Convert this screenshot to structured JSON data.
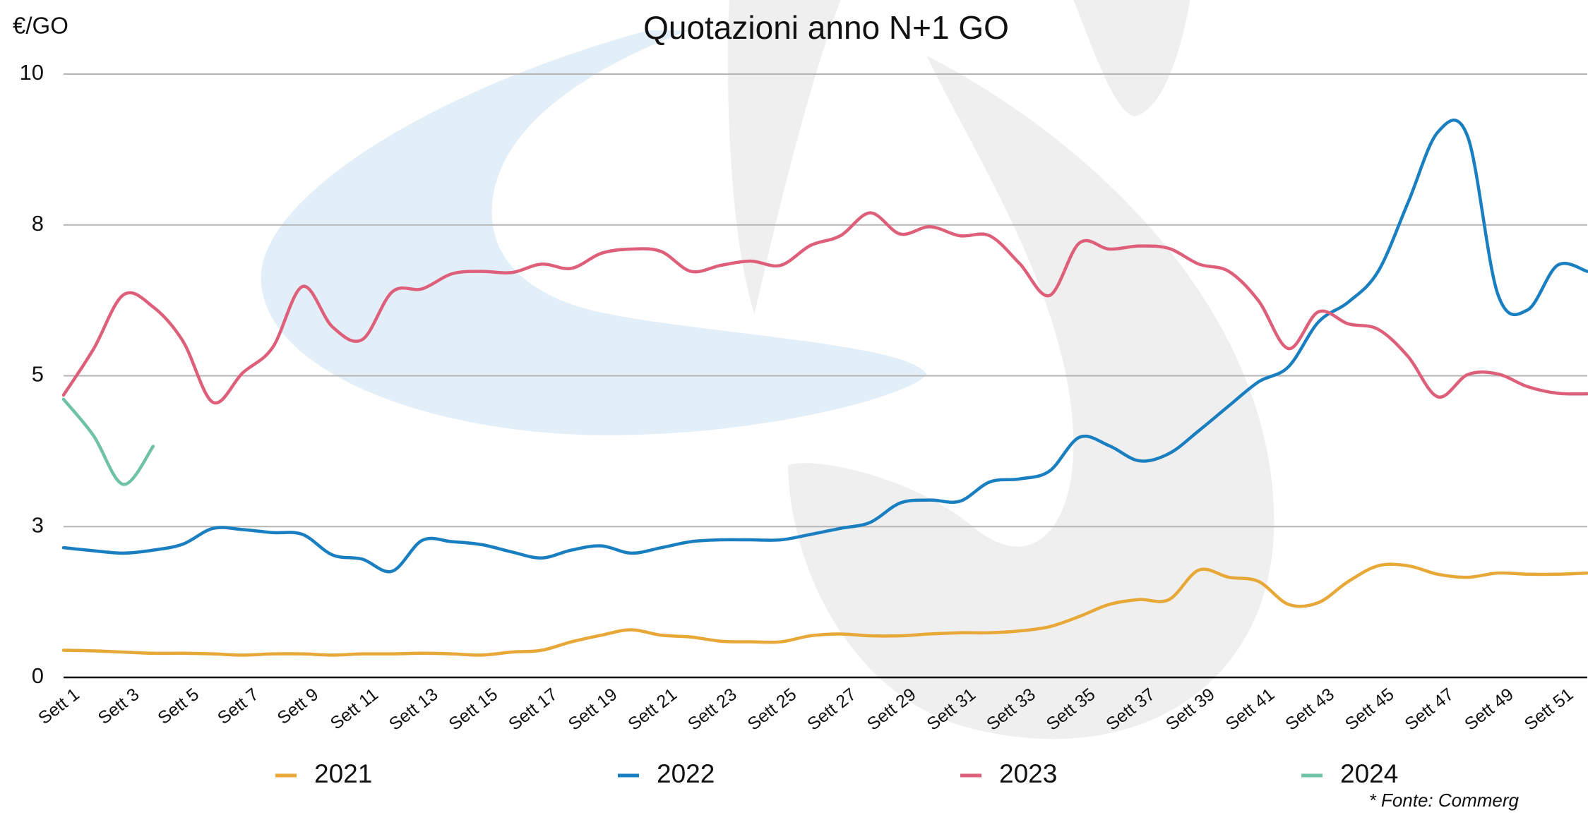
{
  "chart_data": {
    "type": "line",
    "title": "Quotazioni anno N+1 GO",
    "y_label": "€/GO",
    "categories": [
      "Sett 1",
      null,
      "Sett 3",
      null,
      "Sett 5",
      null,
      "Sett 7",
      null,
      "Sett 9",
      null,
      "Sett 11",
      null,
      "Sett 13",
      null,
      "Sett 15",
      null,
      "Sett 17",
      null,
      "Sett 19",
      null,
      "Sett 21",
      null,
      "Sett 23",
      null,
      "Sett 25",
      null,
      "Sett 27",
      null,
      "Sett 29",
      null,
      "Sett 31",
      null,
      "Sett 33",
      null,
      "Sett 35",
      null,
      "Sett 37",
      null,
      "Sett 39",
      null,
      "Sett 41",
      null,
      "Sett 43",
      null,
      "Sett 45",
      null,
      "Sett 47",
      null,
      "Sett 49",
      null,
      "Sett 51",
      null
    ],
    "series": [
      {
        "name": "2021",
        "color": "#e8a838",
        "values": [
          0.45,
          0.44,
          0.42,
          0.4,
          0.4,
          0.39,
          0.37,
          0.39,
          0.39,
          0.37,
          0.39,
          0.39,
          0.4,
          0.39,
          0.37,
          0.42,
          0.45,
          0.59,
          0.7,
          0.79,
          0.7,
          0.67,
          0.6,
          0.59,
          0.59,
          0.69,
          0.72,
          0.69,
          0.69,
          0.72,
          0.74,
          0.74,
          0.77,
          0.84,
          1.01,
          1.21,
          1.29,
          1.29,
          1.78,
          1.66,
          1.59,
          1.21,
          1.24,
          1.59,
          1.85,
          1.85,
          1.71,
          1.66,
          1.73,
          1.71,
          1.71,
          1.73
        ]
      },
      {
        "name": "2022",
        "color": "#1a7fc1",
        "values": [
          2.15,
          2.1,
          2.06,
          2.11,
          2.21,
          2.47,
          2.45,
          2.4,
          2.37,
          2.03,
          1.96,
          1.76,
          2.27,
          2.25,
          2.2,
          2.08,
          1.98,
          2.11,
          2.18,
          2.06,
          2.15,
          2.25,
          2.28,
          2.28,
          2.28,
          2.37,
          2.47,
          2.57,
          2.89,
          2.94,
          2.92,
          3.24,
          3.29,
          3.42,
          3.98,
          3.84,
          3.59,
          3.71,
          4.09,
          4.5,
          4.9,
          5.15,
          5.89,
          6.22,
          6.73,
          7.87,
          9.04,
          8.96,
          6.36,
          6.09,
          6.83,
          6.73
        ]
      },
      {
        "name": "2023",
        "color": "#de5f7a",
        "values": [
          4.68,
          5.44,
          6.34,
          6.14,
          5.57,
          4.56,
          5.05,
          5.47,
          6.48,
          5.81,
          5.6,
          6.39,
          6.44,
          6.69,
          6.73,
          6.71,
          6.85,
          6.78,
          7.03,
          7.1,
          7.06,
          6.73,
          6.83,
          6.9,
          6.83,
          7.16,
          7.32,
          7.7,
          7.35,
          7.47,
          7.32,
          7.32,
          6.86,
          6.33,
          7.2,
          7.1,
          7.15,
          7.11,
          6.85,
          6.73,
          6.24,
          5.45,
          6.06,
          5.86,
          5.77,
          5.32,
          4.65,
          5.02,
          5.03,
          4.82,
          4.71,
          4.7
        ]
      },
      {
        "name": "2024",
        "color": "#6fc2a6",
        "values": [
          4.61,
          4.01,
          3.2,
          3.83,
          null,
          null,
          null,
          null,
          null,
          null,
          null,
          null,
          null,
          null,
          null,
          null,
          null,
          null,
          null,
          null,
          null,
          null,
          null,
          null,
          null,
          null,
          null,
          null,
          null,
          null,
          null,
          null,
          null,
          null,
          null,
          null,
          null,
          null,
          null,
          null,
          null,
          null,
          null,
          null,
          null,
          null,
          null,
          null,
          null,
          null,
          null,
          null
        ]
      }
    ],
    "ylim": [
      0,
      10
    ],
    "yticks": [
      0,
      {
        "value": 2.5,
        "label": "3"
      },
      5,
      {
        "value": 7.5,
        "label": "8"
      },
      10
    ],
    "grid": true,
    "legend": "bottom",
    "footnote": "* Fonte: Commerg"
  }
}
